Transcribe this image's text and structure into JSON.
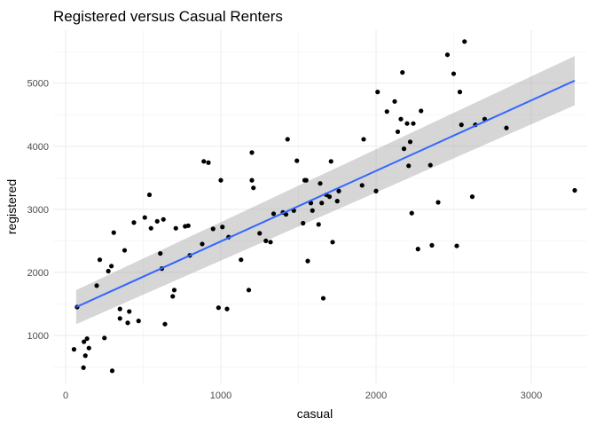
{
  "chart_data": {
    "type": "scatter",
    "title": "Registered versus Casual Renters",
    "xlabel": "casual",
    "ylabel": "registered",
    "xlim": [
      -80,
      3360
    ],
    "ylim": [
      240,
      5840
    ],
    "x_ticks": [
      0,
      1000,
      2000,
      3000
    ],
    "y_ticks": [
      1000,
      2000,
      3000,
      4000,
      5000
    ],
    "x_tick_labels": [
      "0",
      "1000",
      "2000",
      "3000"
    ],
    "y_tick_labels": [
      "1000",
      "2000",
      "3000",
      "4000",
      "5000"
    ],
    "grid": true,
    "legend": "none",
    "point_color": "#000000",
    "fit_line": {
      "method": "linear",
      "color": "#3366ff",
      "band_color": "#999999",
      "x": [
        68,
        3280
      ],
      "y": [
        1450,
        5040
      ],
      "band_low": [
        1180,
        4650
      ],
      "band_high": [
        1720,
        5430
      ]
    },
    "points": [
      {
        "x": 54,
        "y": 780
      },
      {
        "x": 74,
        "y": 1450
      },
      {
        "x": 115,
        "y": 490
      },
      {
        "x": 118,
        "y": 900
      },
      {
        "x": 127,
        "y": 680
      },
      {
        "x": 138,
        "y": 950
      },
      {
        "x": 150,
        "y": 800
      },
      {
        "x": 200,
        "y": 1790
      },
      {
        "x": 220,
        "y": 2200
      },
      {
        "x": 250,
        "y": 960
      },
      {
        "x": 275,
        "y": 2020
      },
      {
        "x": 295,
        "y": 2100
      },
      {
        "x": 300,
        "y": 440
      },
      {
        "x": 310,
        "y": 2630
      },
      {
        "x": 350,
        "y": 1420
      },
      {
        "x": 350,
        "y": 1270
      },
      {
        "x": 380,
        "y": 2350
      },
      {
        "x": 400,
        "y": 1200
      },
      {
        "x": 410,
        "y": 1380
      },
      {
        "x": 440,
        "y": 2790
      },
      {
        "x": 470,
        "y": 1230
      },
      {
        "x": 510,
        "y": 2870
      },
      {
        "x": 540,
        "y": 3230
      },
      {
        "x": 550,
        "y": 2700
      },
      {
        "x": 590,
        "y": 2810
      },
      {
        "x": 610,
        "y": 2300
      },
      {
        "x": 620,
        "y": 2060
      },
      {
        "x": 630,
        "y": 2840
      },
      {
        "x": 640,
        "y": 1180
      },
      {
        "x": 690,
        "y": 1620
      },
      {
        "x": 700,
        "y": 1720
      },
      {
        "x": 710,
        "y": 2700
      },
      {
        "x": 770,
        "y": 2730
      },
      {
        "x": 790,
        "y": 2740
      },
      {
        "x": 800,
        "y": 2270
      },
      {
        "x": 880,
        "y": 2450
      },
      {
        "x": 890,
        "y": 3760
      },
      {
        "x": 920,
        "y": 3740
      },
      {
        "x": 950,
        "y": 2690
      },
      {
        "x": 985,
        "y": 1440
      },
      {
        "x": 1000,
        "y": 3460
      },
      {
        "x": 1010,
        "y": 2720
      },
      {
        "x": 1040,
        "y": 1420
      },
      {
        "x": 1050,
        "y": 2560
      },
      {
        "x": 1130,
        "y": 2200
      },
      {
        "x": 1180,
        "y": 1720
      },
      {
        "x": 1200,
        "y": 3900
      },
      {
        "x": 1200,
        "y": 3460
      },
      {
        "x": 1210,
        "y": 3340
      },
      {
        "x": 1250,
        "y": 2620
      },
      {
        "x": 1290,
        "y": 2500
      },
      {
        "x": 1320,
        "y": 2480
      },
      {
        "x": 1340,
        "y": 2930
      },
      {
        "x": 1400,
        "y": 2950
      },
      {
        "x": 1420,
        "y": 2920
      },
      {
        "x": 1430,
        "y": 4110
      },
      {
        "x": 1470,
        "y": 2980
      },
      {
        "x": 1490,
        "y": 3770
      },
      {
        "x": 1530,
        "y": 2780
      },
      {
        "x": 1540,
        "y": 3460
      },
      {
        "x": 1550,
        "y": 3460
      },
      {
        "x": 1560,
        "y": 2180
      },
      {
        "x": 1580,
        "y": 3100
      },
      {
        "x": 1590,
        "y": 2980
      },
      {
        "x": 1630,
        "y": 2760
      },
      {
        "x": 1640,
        "y": 3410
      },
      {
        "x": 1650,
        "y": 3100
      },
      {
        "x": 1660,
        "y": 1590
      },
      {
        "x": 1680,
        "y": 3230
      },
      {
        "x": 1700,
        "y": 3200
      },
      {
        "x": 1710,
        "y": 3760
      },
      {
        "x": 1720,
        "y": 2480
      },
      {
        "x": 1750,
        "y": 3130
      },
      {
        "x": 1760,
        "y": 3290
      },
      {
        "x": 1910,
        "y": 3380
      },
      {
        "x": 1920,
        "y": 4110
      },
      {
        "x": 2000,
        "y": 3290
      },
      {
        "x": 2010,
        "y": 4860
      },
      {
        "x": 2070,
        "y": 4550
      },
      {
        "x": 2120,
        "y": 4710
      },
      {
        "x": 2140,
        "y": 4230
      },
      {
        "x": 2160,
        "y": 4430
      },
      {
        "x": 2170,
        "y": 5170
      },
      {
        "x": 2180,
        "y": 3960
      },
      {
        "x": 2200,
        "y": 4360
      },
      {
        "x": 2210,
        "y": 3690
      },
      {
        "x": 2220,
        "y": 4070
      },
      {
        "x": 2230,
        "y": 2940
      },
      {
        "x": 2240,
        "y": 4360
      },
      {
        "x": 2270,
        "y": 2370
      },
      {
        "x": 2290,
        "y": 4560
      },
      {
        "x": 2350,
        "y": 3700
      },
      {
        "x": 2360,
        "y": 2430
      },
      {
        "x": 2400,
        "y": 3110
      },
      {
        "x": 2460,
        "y": 5450
      },
      {
        "x": 2500,
        "y": 5150
      },
      {
        "x": 2520,
        "y": 2420
      },
      {
        "x": 2540,
        "y": 4860
      },
      {
        "x": 2550,
        "y": 4340
      },
      {
        "x": 2570,
        "y": 5660
      },
      {
        "x": 2620,
        "y": 3200
      },
      {
        "x": 2640,
        "y": 4340
      },
      {
        "x": 2700,
        "y": 4430
      },
      {
        "x": 2840,
        "y": 4290
      },
      {
        "x": 3280,
        "y": 3300
      }
    ]
  }
}
